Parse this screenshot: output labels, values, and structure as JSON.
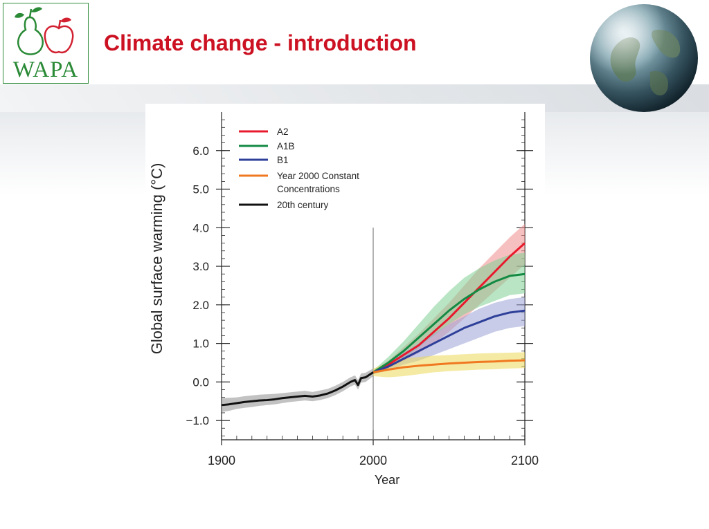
{
  "header": {
    "title": "Climate change - introduction",
    "logo_text": "WAPA",
    "logo_color": "#2a8a36",
    "title_color": "#cc1122"
  },
  "chart_data": {
    "type": "line",
    "xlabel": "Year",
    "ylabel": "Global surface warming (°C)",
    "xlim": [
      1900,
      2100
    ],
    "ylim": [
      -1.0,
      6.0
    ],
    "x_ticks": [
      1900,
      2000,
      2100
    ],
    "y_ticks": [
      -1.0,
      0.0,
      1.0,
      2.0,
      3.0,
      4.0,
      5.0,
      6.0
    ],
    "y_tick_labels": [
      "−1.0",
      "0.0",
      "1.0",
      "2.0",
      "3.0",
      "4.0",
      "5.0",
      "6.0"
    ],
    "x_tick_labels": [
      "1900",
      "2000",
      "2100"
    ],
    "grid": false,
    "legend_position": "top-left",
    "reference_line_x": 2000,
    "series": [
      {
        "name": "A2",
        "color": "#e8192c",
        "band_color": "#f08c8c",
        "x": [
          2000,
          2010,
          2020,
          2030,
          2040,
          2050,
          2060,
          2070,
          2080,
          2090,
          2100
        ],
        "y": [
          0.25,
          0.45,
          0.7,
          0.95,
          1.3,
          1.65,
          2.05,
          2.45,
          2.85,
          3.25,
          3.6
        ],
        "lower": [
          0.2,
          0.35,
          0.55,
          0.75,
          1.0,
          1.3,
          1.65,
          2.0,
          2.35,
          2.7,
          3.05
        ],
        "upper": [
          0.3,
          0.55,
          0.9,
          1.25,
          1.65,
          2.05,
          2.5,
          2.95,
          3.35,
          3.75,
          4.1
        ]
      },
      {
        "name": "A1B",
        "color": "#138a43",
        "band_color": "#7fcf94",
        "x": [
          2000,
          2010,
          2020,
          2030,
          2040,
          2050,
          2060,
          2070,
          2080,
          2090,
          2100
        ],
        "y": [
          0.25,
          0.5,
          0.8,
          1.15,
          1.5,
          1.85,
          2.15,
          2.4,
          2.6,
          2.75,
          2.8
        ],
        "lower": [
          0.2,
          0.4,
          0.6,
          0.9,
          1.2,
          1.5,
          1.75,
          1.95,
          2.1,
          2.25,
          2.3
        ],
        "upper": [
          0.3,
          0.65,
          1.05,
          1.5,
          1.95,
          2.35,
          2.7,
          2.95,
          3.15,
          3.3,
          3.35
        ]
      },
      {
        "name": "B1",
        "color": "#2e3f99",
        "band_color": "#9aa3d6",
        "x": [
          2000,
          2010,
          2020,
          2030,
          2040,
          2050,
          2060,
          2070,
          2080,
          2090,
          2100
        ],
        "y": [
          0.25,
          0.4,
          0.6,
          0.8,
          1.0,
          1.2,
          1.4,
          1.55,
          1.7,
          1.8,
          1.85
        ],
        "lower": [
          0.2,
          0.3,
          0.45,
          0.55,
          0.7,
          0.85,
          1.0,
          1.15,
          1.3,
          1.4,
          1.45
        ],
        "upper": [
          0.3,
          0.5,
          0.75,
          1.0,
          1.25,
          1.5,
          1.7,
          1.9,
          2.05,
          2.15,
          2.2
        ]
      },
      {
        "name": "Year 2000 Constant Concentrations",
        "color": "#f07820",
        "band_color": "#ecd95a",
        "x": [
          2000,
          2010,
          2020,
          2030,
          2040,
          2050,
          2060,
          2070,
          2080,
          2090,
          2100
        ],
        "y": [
          0.25,
          0.32,
          0.38,
          0.42,
          0.45,
          0.48,
          0.5,
          0.52,
          0.53,
          0.55,
          0.56
        ],
        "lower": [
          0.15,
          0.12,
          0.15,
          0.2,
          0.25,
          0.28,
          0.3,
          0.32,
          0.33,
          0.35,
          0.36
        ],
        "upper": [
          0.35,
          0.5,
          0.6,
          0.65,
          0.68,
          0.7,
          0.72,
          0.74,
          0.75,
          0.76,
          0.77
        ]
      },
      {
        "name": "20th century",
        "color": "#111111",
        "band_color": "#8f8f8f",
        "x": [
          1900,
          1905,
          1910,
          1915,
          1920,
          1925,
          1930,
          1935,
          1940,
          1945,
          1950,
          1955,
          1960,
          1965,
          1970,
          1975,
          1980,
          1985,
          1988,
          1990,
          1992,
          1995,
          2000
        ],
        "y": [
          -0.6,
          -0.58,
          -0.55,
          -0.52,
          -0.5,
          -0.48,
          -0.47,
          -0.45,
          -0.42,
          -0.4,
          -0.38,
          -0.36,
          -0.38,
          -0.35,
          -0.3,
          -0.22,
          -0.12,
          0.0,
          0.05,
          -0.08,
          0.1,
          0.12,
          0.25
        ],
        "lower": [
          -0.78,
          -0.75,
          -0.7,
          -0.67,
          -0.65,
          -0.62,
          -0.6,
          -0.58,
          -0.55,
          -0.52,
          -0.5,
          -0.48,
          -0.5,
          -0.47,
          -0.42,
          -0.34,
          -0.24,
          -0.12,
          -0.07,
          -0.2,
          -0.02,
          0.0,
          0.15
        ],
        "upper": [
          -0.42,
          -0.41,
          -0.4,
          -0.37,
          -0.35,
          -0.33,
          -0.32,
          -0.31,
          -0.29,
          -0.27,
          -0.25,
          -0.23,
          -0.26,
          -0.22,
          -0.18,
          -0.1,
          0.0,
          0.12,
          0.17,
          0.05,
          0.22,
          0.24,
          0.35
        ]
      }
    ]
  }
}
